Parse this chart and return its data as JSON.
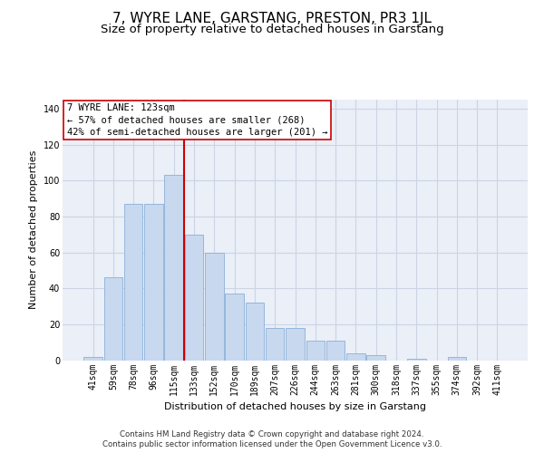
{
  "title": "7, WYRE LANE, GARSTANG, PRESTON, PR3 1JL",
  "subtitle": "Size of property relative to detached houses in Garstang",
  "xlabel": "Distribution of detached houses by size in Garstang",
  "ylabel": "Number of detached properties",
  "footnote1": "Contains HM Land Registry data © Crown copyright and database right 2024.",
  "footnote2": "Contains public sector information licensed under the Open Government Licence v3.0.",
  "annotation_line1": "7 WYRE LANE: 123sqm",
  "annotation_line2": "← 57% of detached houses are smaller (268)",
  "annotation_line3": "42% of semi-detached houses are larger (201) →",
  "bar_color": "#c8d8ee",
  "bar_edge_color": "#8ab0d8",
  "vline_color": "#cc0000",
  "categories": [
    "41sqm",
    "59sqm",
    "78sqm",
    "96sqm",
    "115sqm",
    "133sqm",
    "152sqm",
    "170sqm",
    "189sqm",
    "207sqm",
    "226sqm",
    "244sqm",
    "263sqm",
    "281sqm",
    "300sqm",
    "318sqm",
    "337sqm",
    "355sqm",
    "374sqm",
    "392sqm",
    "411sqm"
  ],
  "values": [
    2,
    46,
    87,
    87,
    103,
    70,
    60,
    37,
    32,
    18,
    18,
    11,
    11,
    4,
    3,
    0,
    1,
    0,
    2,
    0,
    0
  ],
  "ylim": [
    0,
    145
  ],
  "yticks": [
    0,
    20,
    40,
    60,
    80,
    100,
    120,
    140
  ],
  "grid_color": "#ccd4e4",
  "bg_color": "#eaeff8",
  "title_fontsize": 11,
  "subtitle_fontsize": 9.5,
  "axis_label_fontsize": 8,
  "tick_fontsize": 7,
  "annotation_fontsize": 7.5,
  "footnote_fontsize": 6.2,
  "vline_x": 4.5
}
